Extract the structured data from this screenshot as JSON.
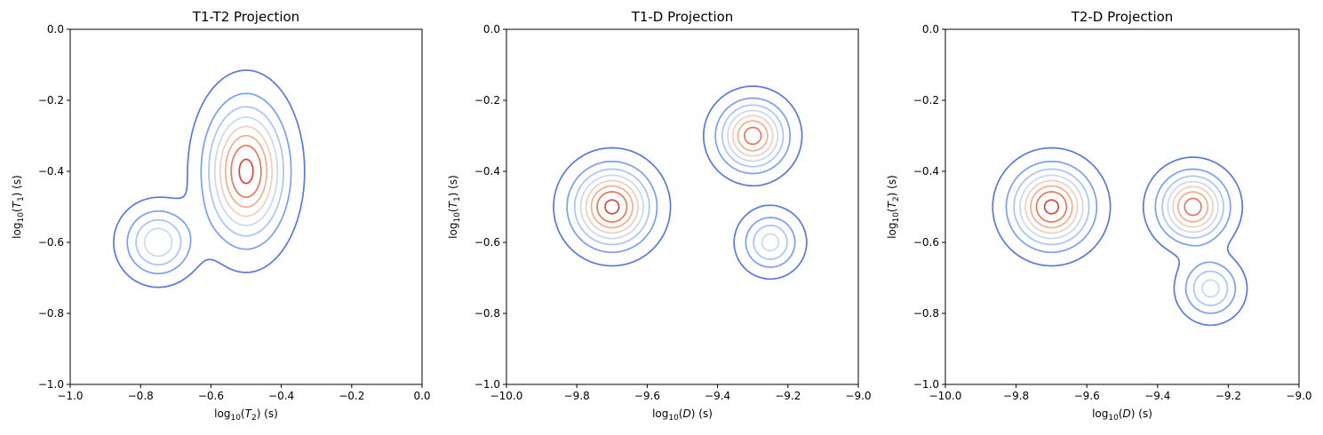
{
  "chart_data": [
    {
      "type": "contour",
      "title": "T1-T2 Projection",
      "xlabel": {
        "prefix": "log",
        "sub": "10",
        "open": "(",
        "var": "T",
        "vsub": "2",
        "close": ") (s)"
      },
      "ylabel": {
        "prefix": "log",
        "sub": "10",
        "open": "(",
        "var": "T",
        "vsub": "1",
        "close": ") (s)"
      },
      "xlim": [
        -1.0,
        0.0
      ],
      "ylim": [
        -1.0,
        0.0
      ],
      "xticks": [
        "−1.0",
        "−0.8",
        "−0.6",
        "−0.4",
        "−0.2",
        "0.0"
      ],
      "yticks": [
        "−1.0",
        "−0.8",
        "−0.6",
        "−0.4",
        "−0.2",
        "0.0"
      ],
      "xtick_values": [
        -1.0,
        -0.8,
        -0.6,
        -0.4,
        -0.2,
        0.0
      ],
      "ytick_values": [
        -1.0,
        -0.8,
        -0.6,
        -0.4,
        -0.2,
        0.0
      ],
      "colormap": "coolwarm",
      "levels": 8,
      "components": [
        {
          "cx": -0.5,
          "cy": -0.4,
          "sx": 0.07,
          "sy": 0.12,
          "w": 1.0
        },
        {
          "cx": -0.75,
          "cy": -0.6,
          "sx": 0.06,
          "sy": 0.06,
          "w": 0.55
        }
      ]
    },
    {
      "type": "contour",
      "title": "T1-D Projection",
      "xlabel": {
        "prefix": "log",
        "sub": "10",
        "open": "(",
        "var": "D",
        "vsub": "",
        "close": ") (s)"
      },
      "ylabel": {
        "prefix": "log",
        "sub": "10",
        "open": "(",
        "var": "T",
        "vsub": "1",
        "close": ") (s)"
      },
      "xlim": [
        -10.0,
        -9.0
      ],
      "ylim": [
        -1.0,
        0.0
      ],
      "xticks": [
        "−10.0",
        "−9.8",
        "−9.6",
        "−9.4",
        "−9.2",
        "−9.0"
      ],
      "yticks": [
        "−1.0",
        "−0.8",
        "−0.6",
        "−0.4",
        "−0.2",
        "0.0"
      ],
      "xtick_values": [
        -10.0,
        -9.8,
        -9.6,
        -9.4,
        -9.2,
        -9.0
      ],
      "ytick_values": [
        -1.0,
        -0.8,
        -0.6,
        -0.4,
        -0.2,
        0.0
      ],
      "colormap": "coolwarm",
      "levels": 8,
      "components": [
        {
          "cx": -9.7,
          "cy": -0.5,
          "sx": 0.07,
          "sy": 0.07,
          "w": 1.0
        },
        {
          "cx": -9.3,
          "cy": -0.3,
          "sx": 0.06,
          "sy": 0.06,
          "w": 0.9
        },
        {
          "cx": -9.25,
          "cy": -0.6,
          "sx": 0.05,
          "sy": 0.05,
          "w": 0.5
        }
      ]
    },
    {
      "type": "contour",
      "title": "T2-D Projection",
      "xlabel": {
        "prefix": "log",
        "sub": "10",
        "open": "(",
        "var": "D",
        "vsub": "",
        "close": ") (s)"
      },
      "ylabel": {
        "prefix": "log",
        "sub": "10",
        "open": "(",
        "var": "T",
        "vsub": "2",
        "close": ") (s)"
      },
      "xlim": [
        -10.0,
        -9.0
      ],
      "ylim": [
        -1.0,
        0.0
      ],
      "xticks": [
        "−10.0",
        "−9.8",
        "−9.6",
        "−9.4",
        "−9.2",
        "−9.0"
      ],
      "yticks": [
        "−1.0",
        "−0.8",
        "−0.6",
        "−0.4",
        "−0.2",
        "0.0"
      ],
      "xtick_values": [
        -10.0,
        -9.8,
        -9.6,
        -9.4,
        -9.2,
        -9.0
      ],
      "ytick_values": [
        -1.0,
        -0.8,
        -0.6,
        -0.4,
        -0.2,
        0.0
      ],
      "colormap": "coolwarm",
      "levels": 8,
      "components": [
        {
          "cx": -9.7,
          "cy": -0.5,
          "sx": 0.07,
          "sy": 0.07,
          "w": 1.0
        },
        {
          "cx": -9.3,
          "cy": -0.5,
          "sx": 0.06,
          "sy": 0.06,
          "w": 0.9
        },
        {
          "cx": -9.25,
          "cy": -0.73,
          "sx": 0.05,
          "sy": 0.05,
          "w": 0.5
        }
      ]
    }
  ]
}
